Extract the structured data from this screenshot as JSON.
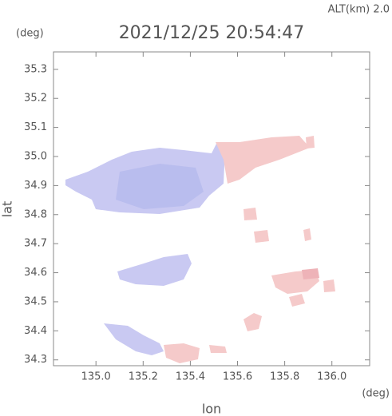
{
  "chart_data": {
    "type": "map",
    "title": "2021/12/25 20:54:47",
    "altitude_label": "ALT(km) 2.0",
    "y_unit": "(deg)",
    "x_unit": "(deg)",
    "xlabel": "lon",
    "ylabel": "lat",
    "xlim": [
      134.82,
      136.16
    ],
    "xticks": [
      {
        "value": 135,
        "label": "135.0"
      },
      135.2,
      135.4,
      135.6,
      135.8,
      {
        "value": 136,
        "label": "136.0"
      }
    ],
    "ylim": [
      34.28,
      35.36
    ],
    "yticks": [
      35.3,
      35.2,
      35.1,
      {
        "value": 35,
        "label": "35.0"
      },
      34.9,
      34.8,
      34.7,
      34.6,
      34.5,
      34.4,
      34.3
    ]
  }
}
